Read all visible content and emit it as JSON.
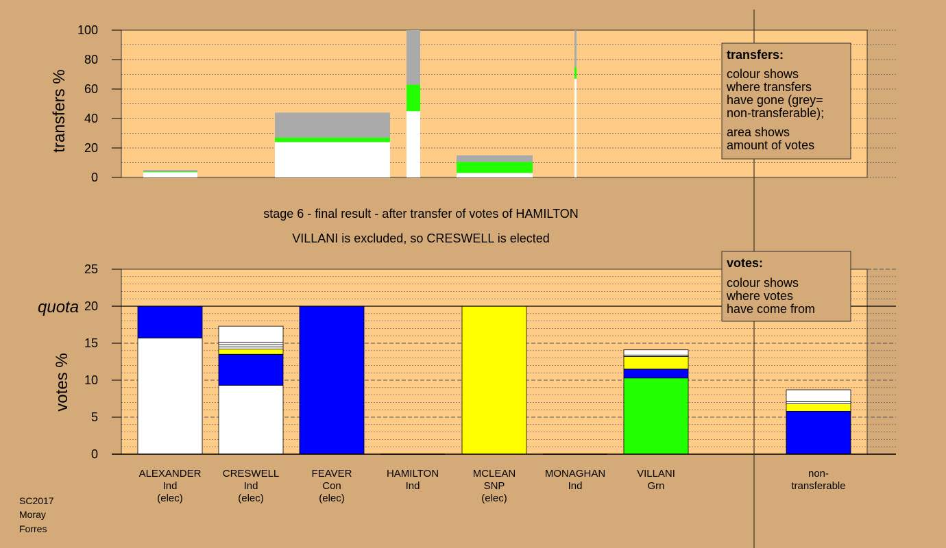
{
  "chart_data": [
    {
      "type": "bar",
      "ylabel": "transfers %",
      "ylim": [
        0,
        100
      ],
      "yticks": [
        0,
        20,
        40,
        60,
        80,
        100
      ],
      "bars": [
        {
          "candidate": "ALEXANDER",
          "segments": [
            {
              "color": "#ffffff",
              "value": 3.5
            },
            {
              "color": "#22ff00",
              "value": 0.5
            },
            {
              "color": "#aaaaaa",
              "value": 1.0
            }
          ]
        },
        {
          "candidate": "CRESWELL",
          "segments": [
            {
              "color": "#ffffff",
              "value": 24.0
            },
            {
              "color": "#22ff00",
              "value": 3.0
            },
            {
              "color": "#aaaaaa",
              "value": 17.0
            }
          ]
        },
        {
          "candidate": "FEAVER",
          "segments": [
            {
              "color": "#ffffff",
              "value": 45.0
            },
            {
              "color": "#22ff00",
              "value": 18.0
            },
            {
              "color": "#aaaaaa",
              "value": 37.0
            }
          ]
        },
        {
          "candidate": "MCLEAN",
          "segments": [
            {
              "color": "#ffffff",
              "value": 3.0
            },
            {
              "color": "#22ff00",
              "value": 7.5
            },
            {
              "color": "#aaaaaa",
              "value": 4.5
            }
          ]
        },
        {
          "candidate": "VILLANI",
          "segments": [
            {
              "color": "#ffffff",
              "value": 67.0
            },
            {
              "color": "#22ff00",
              "value": 8.0
            },
            {
              "color": "#aaaaaa",
              "value": 25.0
            }
          ]
        }
      ],
      "legend": {
        "title": "transfers:",
        "lines": [
          "colour shows",
          "where transfers",
          "have gone (grey=",
          "non-transferable);",
          "area shows",
          "amount of votes"
        ]
      }
    },
    {
      "type": "bar",
      "ylabel": "votes %",
      "ylim": [
        0,
        25
      ],
      "yticks": [
        0,
        5,
        10,
        15,
        20,
        25
      ],
      "quota": 20,
      "quota_label": "quota",
      "categories": [
        {
          "lines": [
            "ALEXANDER",
            "Ind",
            "(elec)"
          ],
          "segments": [
            {
              "color": "#ffffff",
              "value": 15.7
            },
            {
              "color": "#0000ff",
              "value": 4.3
            }
          ]
        },
        {
          "lines": [
            "CRESWELL",
            "Ind",
            "(elec)"
          ],
          "segments": [
            {
              "color": "#ffffff",
              "value": 9.3
            },
            {
              "color": "#0000ff",
              "value": 4.2
            },
            {
              "color": "#ffff00",
              "value": 0.7
            },
            {
              "color": "#ffffff",
              "value": 0.3
            },
            {
              "color": "#ffffff",
              "value": 0.3
            },
            {
              "color": "#ffffff",
              "value": 0.3
            },
            {
              "color": "#ffffff",
              "value": 2.2
            }
          ]
        },
        {
          "lines": [
            "FEAVER",
            "Con",
            "(elec)"
          ],
          "segments": [
            {
              "color": "#0000ff",
              "value": 20.0
            }
          ]
        },
        {
          "lines": [
            "HAMILTON",
            "Ind"
          ],
          "segments": []
        },
        {
          "lines": [
            "MCLEAN",
            "SNP",
            "(elec)"
          ],
          "segments": [
            {
              "color": "#ffff00",
              "value": 20.0
            }
          ]
        },
        {
          "lines": [
            "MONAGHAN",
            "Ind"
          ],
          "segments": []
        },
        {
          "lines": [
            "VILLANI",
            "Grn"
          ],
          "segments": [
            {
              "color": "#22ff00",
              "value": 10.3
            },
            {
              "color": "#0000ff",
              "value": 1.2
            },
            {
              "color": "#ffff00",
              "value": 1.7
            },
            {
              "color": "#ffffff",
              "value": 0.2
            },
            {
              "color": "#ffffff",
              "value": 0.7
            }
          ]
        },
        {
          "lines": [
            "non-",
            "transferable"
          ],
          "segments": [
            {
              "color": "#0000ff",
              "value": 5.8
            },
            {
              "color": "#ffff00",
              "value": 1.0
            },
            {
              "color": "#ffffff",
              "value": 0.3
            },
            {
              "color": "#ffffff",
              "value": 1.6
            }
          ]
        }
      ],
      "legend": {
        "title": "votes:",
        "lines": [
          "colour shows",
          "where votes",
          "have come from"
        ]
      }
    }
  ],
  "stage_text": "stage 6 - final result - after transfer of votes of HAMILTON",
  "result_text": "VILLANI is excluded, so CRESWELL is elected",
  "footer": [
    "SC2017",
    "Moray",
    "Forres"
  ],
  "colors": {
    "background": "#d4aa78",
    "plot_area": "#ffcc88",
    "grey": "#aaaaaa",
    "green": "#22ff00",
    "blue": "#0000ff",
    "yellow": "#ffff00",
    "white": "#ffffff"
  }
}
